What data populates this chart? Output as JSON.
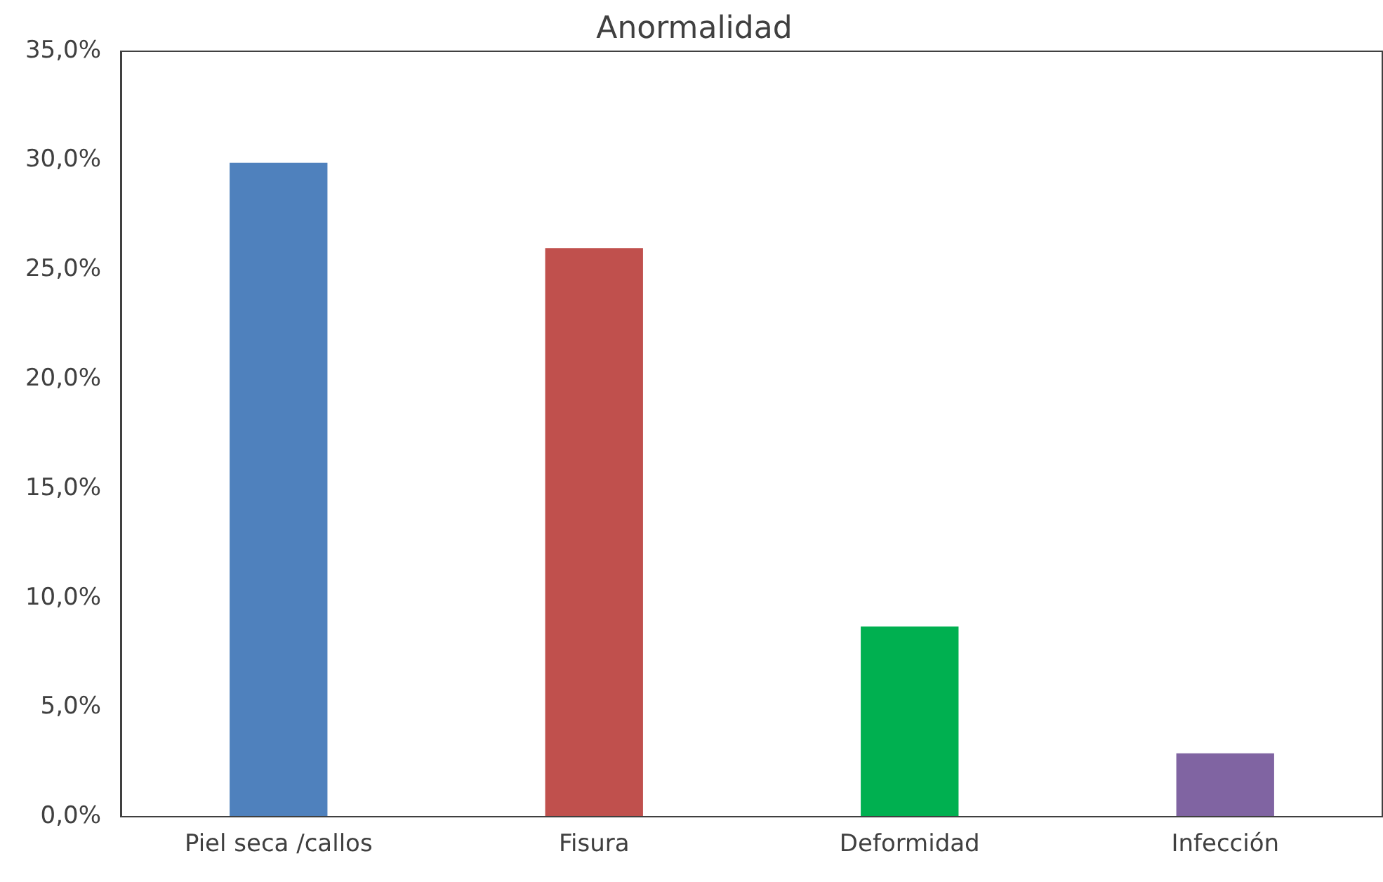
{
  "chart_data": {
    "type": "bar",
    "title": "Anormalidad",
    "categories": [
      "Piel seca /callos",
      "Fisura",
      "Deformidad",
      "Infección"
    ],
    "values": [
      29.9,
      26.0,
      8.7,
      2.9
    ],
    "colors": [
      "#4f81bd",
      "#c0504d",
      "#00b050",
      "#8064a2"
    ],
    "ylim": [
      0,
      35
    ],
    "yticks": [
      {
        "value": 0,
        "label": "0,0%"
      },
      {
        "value": 5,
        "label": "5,0%"
      },
      {
        "value": 10,
        "label": "10,0%"
      },
      {
        "value": 15,
        "label": "15,0%"
      },
      {
        "value": 20,
        "label": "20,0%"
      },
      {
        "value": 25,
        "label": "25,0%"
      },
      {
        "value": 30,
        "label": "30,0%"
      },
      {
        "value": 35,
        "label": "35,0%"
      }
    ],
    "grid": false,
    "legend": false
  }
}
